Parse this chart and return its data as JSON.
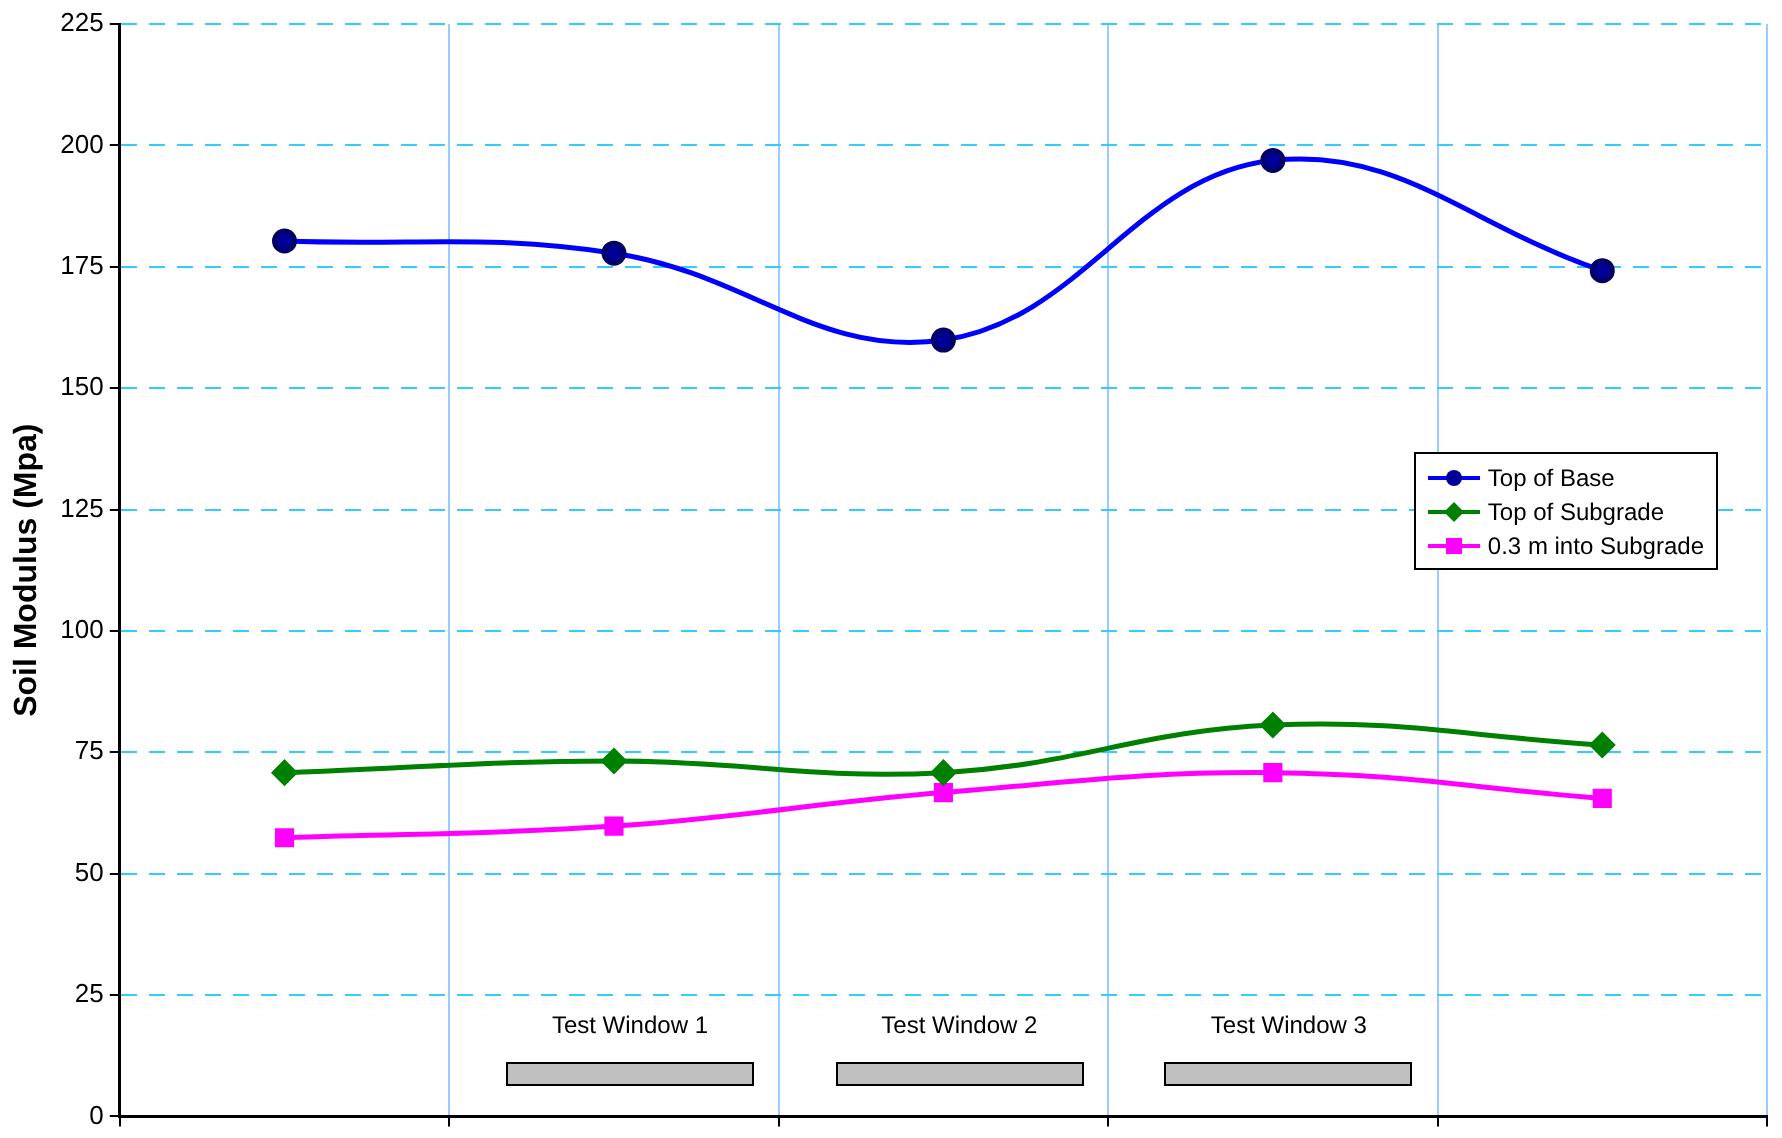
{
  "chart_data": {
    "type": "line",
    "ylabel": "Soil Modulus (Mpa)",
    "categories": [
      null,
      null,
      null,
      null,
      null
    ],
    "series": [
      {
        "name": "Top of Base",
        "color": "#0000ff",
        "marker": "circle",
        "values": [
          180.3,
          177.8,
          159.9,
          196.9,
          174.2
        ]
      },
      {
        "name": "Top of Subgrade",
        "color": "#008000",
        "marker": "diamond",
        "values": [
          70.8,
          73.2,
          70.8,
          80.6,
          76.5
        ]
      },
      {
        "name": "0.3 m into Subgrade",
        "color": "#ff00ff",
        "marker": "square",
        "values": [
          57.4,
          59.8,
          66.7,
          70.8,
          65.5
        ]
      }
    ],
    "ylim": [
      0,
      225
    ],
    "yticks": [
      0,
      25,
      50,
      75,
      100,
      125,
      150,
      175,
      200,
      225
    ],
    "grid": true,
    "legend": "right",
    "annotations": [
      "Test Window 1",
      "Test Window 2",
      "Test Window 3"
    ]
  }
}
